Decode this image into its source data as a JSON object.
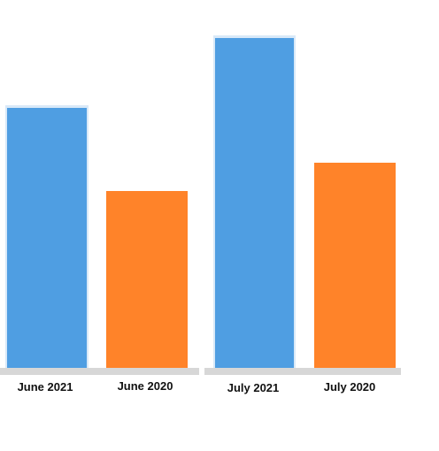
{
  "chart_data": {
    "type": "bar",
    "categories": [
      "June 2021",
      "June 2020",
      "July 2021",
      "July 2020"
    ],
    "values": [
      296,
      202,
      375,
      234
    ],
    "colors": [
      "#4f9ee2",
      "#ff8329",
      "#4f9ee2",
      "#ff8329"
    ],
    "title": "",
    "xlabel": "",
    "ylabel": "",
    "ylim": [
      0,
      420
    ],
    "grid": false,
    "legend": "none"
  }
}
